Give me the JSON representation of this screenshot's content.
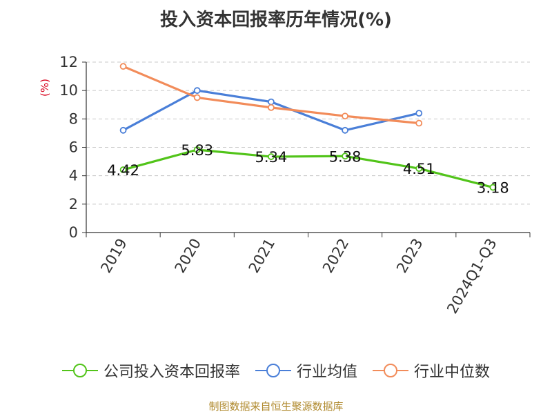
{
  "title": "投入资本回报率历年情况(%)",
  "source": "制图数据来自恒生聚源数据库",
  "chart_data": {
    "type": "line",
    "title": "投入资本回报率历年情况(%)",
    "ylabel": "(%)",
    "xlabel": "",
    "ylim": [
      0,
      12
    ],
    "yticks": [
      0,
      2,
      4,
      6,
      8,
      10,
      12
    ],
    "grid": true,
    "legend_position": "bottom",
    "categories": [
      "2019",
      "2020",
      "2021",
      "2022",
      "2023",
      "2024Q1-Q3"
    ],
    "series": [
      {
        "name": "公司投入资本回报率",
        "color": "#52c41a",
        "marker": "circle",
        "values": [
          4.42,
          5.83,
          5.34,
          5.38,
          4.51,
          3.18
        ],
        "show_labels": true
      },
      {
        "name": "行业均值",
        "color": "#4a7fd8",
        "marker": "circle",
        "values": [
          7.2,
          10.0,
          9.2,
          7.2,
          8.4,
          null
        ],
        "show_labels": false
      },
      {
        "name": "行业中位数",
        "color": "#f28c5a",
        "marker": "circle",
        "values": [
          11.7,
          9.5,
          8.8,
          8.2,
          7.7,
          null
        ],
        "show_labels": false
      }
    ]
  }
}
